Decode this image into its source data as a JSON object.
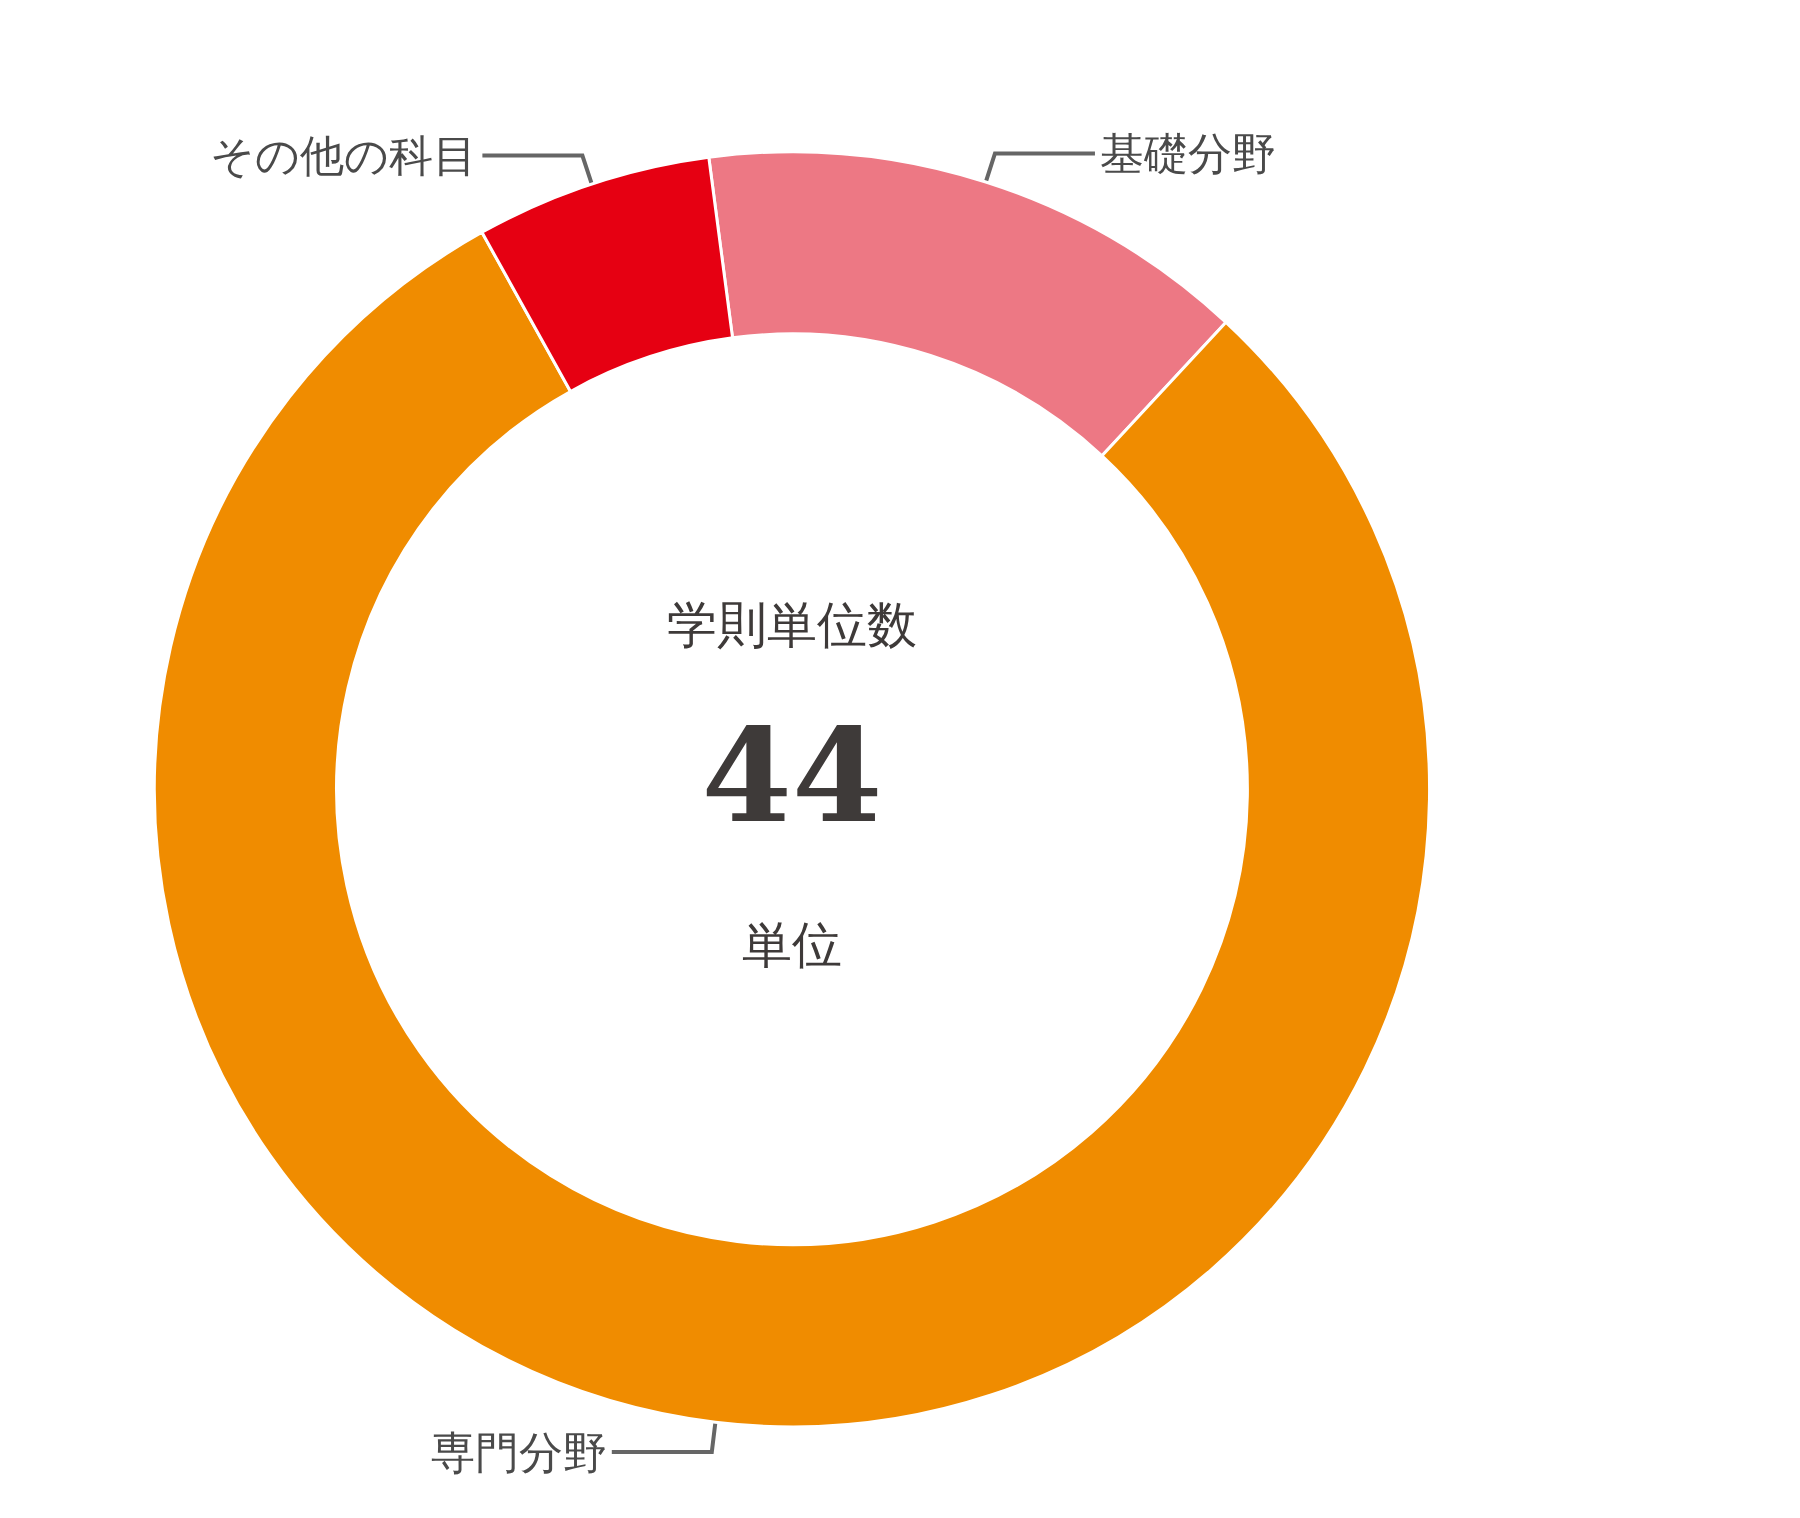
{
  "chart_data": {
    "type": "donut",
    "title": "学則単位数",
    "annotations": [
      "44",
      "単位"
    ],
    "categories": [
      "基礎分野",
      "専門分野",
      "その他の科目"
    ],
    "values": [
      14,
      80,
      6
    ],
    "colors": [
      "#ed7884",
      "#f08c00",
      "#e60012"
    ],
    "legend": false
  }
}
